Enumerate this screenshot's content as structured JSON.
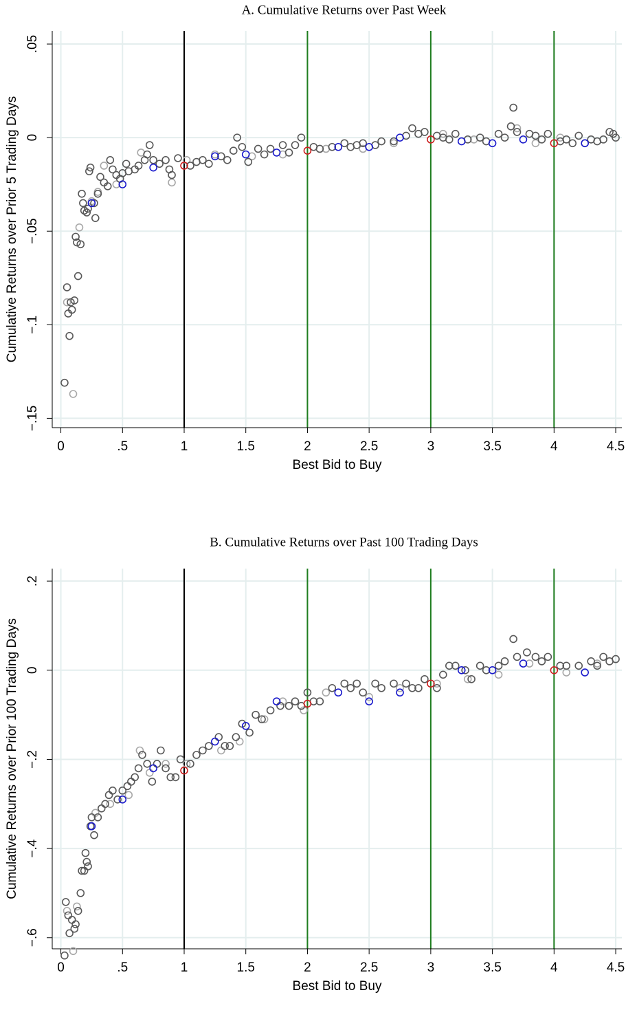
{
  "chart_data": [
    {
      "type": "scatter",
      "title": "A. Cumulative Returns over Past Week",
      "x_label": "Best Bid to Buy",
      "y_label": "Cumulative Returns over Prior 5 Trading Days",
      "xlim": [
        -0.07,
        4.55
      ],
      "ylim": [
        -0.155,
        0.057
      ],
      "grid": true,
      "xticks": [
        0,
        {
          "value": 0.5,
          "label": ".5"
        },
        1,
        1.5,
        2,
        2.5,
        3,
        3.5,
        4,
        4.5
      ],
      "yticks": [
        {
          "value": -0.15,
          "label": "−.15"
        },
        {
          "value": -0.1,
          "label": "−.1"
        },
        {
          "value": -0.05,
          "label": "−.05"
        },
        0,
        {
          "value": 0.05,
          "label": ".05"
        }
      ],
      "vlines": [
        {
          "x": 1,
          "color": "#000000"
        },
        {
          "x": 2,
          "color": "#1e7d1e"
        },
        {
          "x": 3,
          "color": "#1e7d1e"
        },
        {
          "x": 4,
          "color": "#1e7d1e"
        }
      ],
      "series": [
        {
          "color": "#a8a8a8",
          "x": [
            0.05,
            0.1,
            0.15,
            0.25,
            0.3,
            0.35,
            0.45,
            0.65,
            0.9,
            1.02,
            1.25,
            1.55,
            1.8,
            2.15,
            2.45,
            2.7,
            3.1,
            3.35,
            3.7,
            3.85,
            4.05,
            4.25
          ],
          "values": [
            -0.088,
            -0.137,
            -0.048,
            -0.034,
            -0.029,
            -0.015,
            -0.025,
            -0.008,
            -0.024,
            -0.012,
            -0.009,
            -0.01,
            -0.009,
            -0.006,
            -0.006,
            -0.003,
            0.002,
            -0.001,
            0.005,
            -0.003,
            0,
            -0.003
          ]
        },
        {
          "color": "#585858",
          "x": [
            0.03,
            0.05,
            0.06,
            0.07,
            0.08,
            0.09,
            0.11,
            0.12,
            0.13,
            0.14,
            0.16,
            0.17,
            0.18,
            0.19,
            0.21,
            0.22,
            0.23,
            0.24,
            0.27,
            0.28,
            0.3,
            0.32,
            0.35,
            0.38,
            0.4,
            0.42,
            0.45,
            0.48,
            0.5,
            0.53,
            0.55,
            0.6,
            0.63,
            0.68,
            0.7,
            0.72,
            0.75,
            0.8,
            0.85,
            0.88,
            0.9,
            0.95,
            1.05,
            1.1,
            1.15,
            1.2,
            1.3,
            1.35,
            1.4,
            1.43,
            1.47,
            1.52,
            1.6,
            1.65,
            1.7,
            1.8,
            1.85,
            1.9,
            1.95,
            2.05,
            2.1,
            2.2,
            2.3,
            2.35,
            2.4,
            2.45,
            2.55,
            2.6,
            2.7,
            2.8,
            2.85,
            2.9,
            2.95,
            3.05,
            3.1,
            3.15,
            3.2,
            3.3,
            3.4,
            3.45,
            3.55,
            3.6,
            3.65,
            3.67,
            3.7,
            3.8,
            3.85,
            3.9,
            3.95,
            4.05,
            4.1,
            4.15,
            4.2,
            4.3,
            4.35,
            4.4,
            4.45,
            4.48,
            4.5
          ],
          "values": [
            -0.131,
            -0.08,
            -0.094,
            -0.106,
            -0.088,
            -0.092,
            -0.087,
            -0.053,
            -0.056,
            -0.074,
            -0.057,
            -0.03,
            -0.035,
            -0.039,
            -0.04,
            -0.038,
            -0.018,
            -0.016,
            -0.035,
            -0.043,
            -0.03,
            -0.021,
            -0.024,
            -0.026,
            -0.012,
            -0.017,
            -0.02,
            -0.022,
            -0.019,
            -0.014,
            -0.018,
            -0.017,
            -0.015,
            -0.012,
            -0.009,
            -0.004,
            -0.012,
            -0.014,
            -0.012,
            -0.017,
            -0.02,
            -0.011,
            -0.015,
            -0.013,
            -0.012,
            -0.014,
            -0.01,
            -0.012,
            -0.007,
            0,
            -0.005,
            -0.013,
            -0.006,
            -0.009,
            -0.006,
            -0.004,
            -0.008,
            -0.004,
            0,
            -0.005,
            -0.006,
            -0.005,
            -0.003,
            -0.005,
            -0.004,
            -0.003,
            -0.004,
            -0.002,
            -0.002,
            0.001,
            0.005,
            0.002,
            0.003,
            0.001,
            0,
            -0.001,
            0.002,
            -0.001,
            0,
            -0.002,
            0.002,
            0,
            0.006,
            0.016,
            0.003,
            0.002,
            0.001,
            -0.001,
            0.002,
            -0.002,
            -0.001,
            -0.003,
            0.001,
            -0.001,
            -0.002,
            -0.001,
            0.003,
            0.002,
            0
          ]
        },
        {
          "color": "#1a1acc",
          "x": [
            0.25,
            0.5,
            0.75,
            1.25,
            1.5,
            1.75,
            2.25,
            2.5,
            2.75,
            3.25,
            3.5,
            3.75,
            4.25
          ],
          "values": [
            -0.035,
            -0.025,
            -0.016,
            -0.01,
            -0.009,
            -0.008,
            -0.005,
            -0.005,
            0,
            -0.002,
            -0.003,
            -0.001,
            -0.003
          ]
        },
        {
          "color": "#cc2020",
          "x": [
            1,
            2,
            3,
            4
          ],
          "values": [
            -0.015,
            -0.007,
            -0.001,
            -0.003
          ]
        }
      ]
    },
    {
      "type": "scatter",
      "title": "B. Cumulative Returns over Past 100 Trading Days",
      "x_label": "Best Bid to Buy",
      "y_label": "Cumulative Returns over Prior 100 Trading Days",
      "xlim": [
        -0.07,
        4.55
      ],
      "ylim": [
        -0.625,
        0.228
      ],
      "grid": true,
      "xticks": [
        0,
        {
          "value": 0.5,
          "label": ".5"
        },
        1,
        1.5,
        2,
        2.5,
        3,
        3.5,
        4,
        4.5
      ],
      "yticks": [
        {
          "value": -0.6,
          "label": "−.6"
        },
        {
          "value": -0.4,
          "label": "−.4"
        },
        {
          "value": -0.2,
          "label": "−.2"
        },
        0,
        {
          "value": 0.2,
          "label": ".2"
        }
      ],
      "vlines": [
        {
          "x": 1,
          "color": "#000000"
        },
        {
          "x": 2,
          "color": "#1e7d1e"
        },
        {
          "x": 3,
          "color": "#1e7d1e"
        },
        {
          "x": 4,
          "color": "#1e7d1e"
        }
      ],
      "series": [
        {
          "color": "#a8a8a8",
          "x": [
            0.05,
            0.1,
            0.13,
            0.28,
            0.4,
            0.55,
            0.64,
            0.72,
            0.85,
            1.02,
            1.3,
            1.45,
            1.65,
            1.8,
            1.97,
            2.15,
            2.5,
            2.75,
            3.05,
            3.3,
            3.55,
            3.8,
            4.1,
            4.35
          ],
          "values": [
            -0.54,
            -0.63,
            -0.53,
            -0.32,
            -0.3,
            -0.28,
            -0.18,
            -0.23,
            -0.21,
            -0.21,
            -0.18,
            -0.16,
            -0.11,
            -0.07,
            -0.09,
            -0.05,
            -0.06,
            -0.04,
            -0.03,
            -0.02,
            -0.01,
            0.015,
            -0.005,
            0.015
          ]
        },
        {
          "color": "#585858",
          "x": [
            0.03,
            0.04,
            0.06,
            0.07,
            0.09,
            0.11,
            0.12,
            0.14,
            0.16,
            0.17,
            0.19,
            0.2,
            0.21,
            0.22,
            0.24,
            0.25,
            0.27,
            0.3,
            0.33,
            0.36,
            0.39,
            0.42,
            0.46,
            0.5,
            0.54,
            0.57,
            0.6,
            0.63,
            0.66,
            0.7,
            0.74,
            0.78,
            0.81,
            0.85,
            0.89,
            0.93,
            0.97,
            1.05,
            1.1,
            1.15,
            1.2,
            1.28,
            1.33,
            1.37,
            1.42,
            1.47,
            1.53,
            1.58,
            1.63,
            1.7,
            1.78,
            1.85,
            1.9,
            1.95,
            2,
            2.05,
            2.1,
            2.2,
            2.3,
            2.35,
            2.4,
            2.45,
            2.55,
            2.6,
            2.7,
            2.8,
            2.85,
            2.9,
            2.95,
            3.05,
            3.1,
            3.15,
            3.2,
            3.28,
            3.33,
            3.4,
            3.45,
            3.55,
            3.6,
            3.67,
            3.7,
            3.78,
            3.85,
            3.9,
            3.95,
            4.05,
            4.1,
            4.2,
            4.3,
            4.35,
            4.4,
            4.45,
            4.5
          ],
          "values": [
            -0.64,
            -0.52,
            -0.55,
            -0.59,
            -0.56,
            -0.58,
            -0.57,
            -0.54,
            -0.5,
            -0.45,
            -0.45,
            -0.41,
            -0.43,
            -0.44,
            -0.35,
            -0.33,
            -0.37,
            -0.33,
            -0.31,
            -0.3,
            -0.28,
            -0.27,
            -0.29,
            -0.27,
            -0.26,
            -0.25,
            -0.24,
            -0.22,
            -0.19,
            -0.21,
            -0.25,
            -0.21,
            -0.18,
            -0.22,
            -0.24,
            -0.24,
            -0.2,
            -0.21,
            -0.19,
            -0.18,
            -0.17,
            -0.15,
            -0.17,
            -0.17,
            -0.15,
            -0.12,
            -0.14,
            -0.1,
            -0.11,
            -0.09,
            -0.08,
            -0.08,
            -0.07,
            -0.08,
            -0.05,
            -0.07,
            -0.07,
            -0.04,
            -0.03,
            -0.04,
            -0.03,
            -0.05,
            -0.03,
            -0.04,
            -0.03,
            -0.03,
            -0.04,
            -0.04,
            -0.02,
            -0.04,
            -0.01,
            0.01,
            0.01,
            0,
            -0.02,
            0.01,
            0,
            0.01,
            0.02,
            0.07,
            0.03,
            0.04,
            0.03,
            0.02,
            0.03,
            0.01,
            0.01,
            0.01,
            0.02,
            0.01,
            0.03,
            0.02,
            0.025
          ]
        },
        {
          "color": "#1a1acc",
          "x": [
            0.25,
            0.5,
            0.75,
            1.25,
            1.5,
            1.75,
            2.25,
            2.5,
            2.75,
            3.25,
            3.5,
            3.75,
            4.25
          ],
          "values": [
            -0.35,
            -0.29,
            -0.22,
            -0.16,
            -0.125,
            -0.07,
            -0.05,
            -0.07,
            -0.05,
            0,
            0,
            0.015,
            -0.005
          ]
        },
        {
          "color": "#cc2020",
          "x": [
            1,
            2,
            3,
            4
          ],
          "values": [
            -0.225,
            -0.075,
            -0.03,
            0
          ]
        }
      ]
    }
  ]
}
